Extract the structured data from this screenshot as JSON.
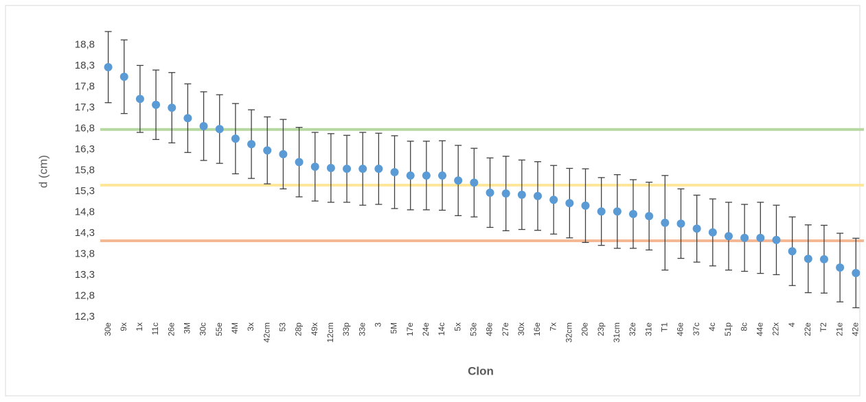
{
  "chart_data": {
    "type": "errorbar-dot",
    "x_label": "Clon",
    "y_label": "d (cm)",
    "categories": [
      "30e",
      "9x",
      "1x",
      "11c",
      "26e",
      "3M",
      "30c",
      "55e",
      "4M",
      "3x",
      "42cm",
      "53",
      "28p",
      "49x",
      "12cm",
      "33p",
      "33e",
      "3",
      "5M",
      "17e",
      "24e",
      "14c",
      "5x",
      "53e",
      "48e",
      "27e",
      "30x",
      "16e",
      "7x",
      "32cm",
      "20e",
      "23p",
      "31cm",
      "32e",
      "31e",
      "T1",
      "46e",
      "37c",
      "4c",
      "51p",
      "8c",
      "44e",
      "22x",
      "4",
      "22e",
      "T2",
      "21e",
      "42e"
    ],
    "series": [
      {
        "color": "#5b9bd5",
        "error_color": "#404040",
        "values": [
          18.27,
          18.04,
          17.51,
          17.37,
          17.3,
          17.05,
          16.86,
          16.79,
          16.56,
          16.43,
          16.28,
          16.19,
          16.0,
          15.89,
          15.86,
          15.84,
          15.84,
          15.84,
          15.76,
          15.68,
          15.68,
          15.68,
          15.56,
          15.51,
          15.27,
          15.25,
          15.22,
          15.19,
          15.1,
          15.02,
          14.96,
          14.82,
          14.82,
          14.76,
          14.71,
          14.55,
          14.53,
          14.41,
          14.32,
          14.23,
          14.19,
          14.19,
          14.14,
          13.87,
          13.69,
          13.68,
          13.48,
          13.35
        ],
        "errors": [
          0.85,
          0.88,
          0.8,
          0.83,
          0.84,
          0.82,
          0.82,
          0.82,
          0.84,
          0.82,
          0.8,
          0.83,
          0.83,
          0.82,
          0.82,
          0.8,
          0.87,
          0.85,
          0.87,
          0.82,
          0.82,
          0.83,
          0.84,
          0.82,
          0.83,
          0.89,
          0.83,
          0.82,
          0.82,
          0.83,
          0.88,
          0.81,
          0.88,
          0.82,
          0.81,
          1.13,
          0.83,
          0.8,
          0.8,
          0.81,
          0.8,
          0.85,
          0.83,
          0.82,
          0.81,
          0.81,
          0.82,
          0.83
        ]
      }
    ],
    "reference_lines": [
      {
        "value": 16.78,
        "color": "#b5d7a0"
      },
      {
        "value": 15.45,
        "color": "#ffe699"
      },
      {
        "value": 14.12,
        "color": "#f4b894"
      }
    ],
    "ylim": [
      12.3,
      19.2
    ],
    "yticks": [
      {
        "value": 12.3,
        "label": "12,3"
      },
      {
        "value": 12.8,
        "label": "12,8"
      },
      {
        "value": 13.3,
        "label": "13,3"
      },
      {
        "value": 13.8,
        "label": "13,8"
      },
      {
        "value": 14.3,
        "label": "14,3"
      },
      {
        "value": 14.8,
        "label": "14,8"
      },
      {
        "value": 15.3,
        "label": "15,3"
      },
      {
        "value": 15.8,
        "label": "15,8"
      },
      {
        "value": 16.3,
        "label": "16,3"
      },
      {
        "value": 16.8,
        "label": "16,8"
      },
      {
        "value": 17.3,
        "label": "17,3"
      },
      {
        "value": 17.8,
        "label": "17,8"
      },
      {
        "value": 18.3,
        "label": "18,3"
      },
      {
        "value": 18.8,
        "label": "18,8"
      }
    ],
    "grid": false
  }
}
